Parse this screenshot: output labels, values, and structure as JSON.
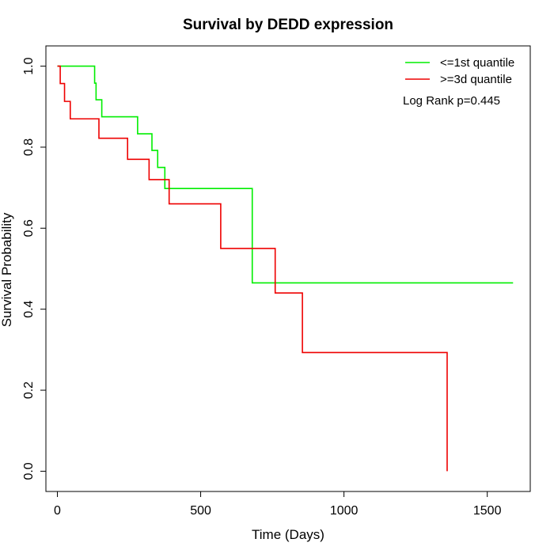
{
  "chart_data": {
    "type": "line",
    "subtype": "kaplan-meier-step",
    "title": "Survival by DEDD expression",
    "xlabel": "Time (Days)",
    "ylabel": "Survival Probability",
    "xlim": [
      -40,
      1650
    ],
    "ylim": [
      -0.05,
      1.05
    ],
    "xticks": [
      0,
      500,
      1000,
      1500
    ],
    "xtick_labels": [
      "0",
      "500",
      "1000",
      "1500"
    ],
    "yticks": [
      0.0,
      0.2,
      0.4,
      0.6,
      0.8,
      1.0
    ],
    "ytick_labels": [
      "0.0",
      "0.2",
      "0.4",
      "0.6",
      "0.8",
      "1.0"
    ],
    "grid": false,
    "legend_position": "top-right",
    "annotation": "Log Rank p=0.445",
    "series": [
      {
        "name": "<=1st quantile",
        "color": "#00ee00",
        "steps": [
          [
            0,
            1.0
          ],
          [
            130,
            0.958
          ],
          [
            135,
            0.917
          ],
          [
            155,
            0.875
          ],
          [
            280,
            0.833
          ],
          [
            330,
            0.792
          ],
          [
            350,
            0.75
          ],
          [
            375,
            0.698
          ],
          [
            680,
            0.465
          ],
          [
            1590,
            0.465
          ]
        ]
      },
      {
        "name": ">=3d quantile",
        "color": "#ee0000",
        "steps": [
          [
            0,
            1.0
          ],
          [
            10,
            0.957
          ],
          [
            25,
            0.913
          ],
          [
            45,
            0.87
          ],
          [
            145,
            0.822
          ],
          [
            245,
            0.77
          ],
          [
            320,
            0.72
          ],
          [
            390,
            0.66
          ],
          [
            570,
            0.55
          ],
          [
            760,
            0.44
          ],
          [
            855,
            0.293
          ],
          [
            1360,
            0.293
          ],
          [
            1360,
            0.0
          ]
        ]
      }
    ]
  }
}
